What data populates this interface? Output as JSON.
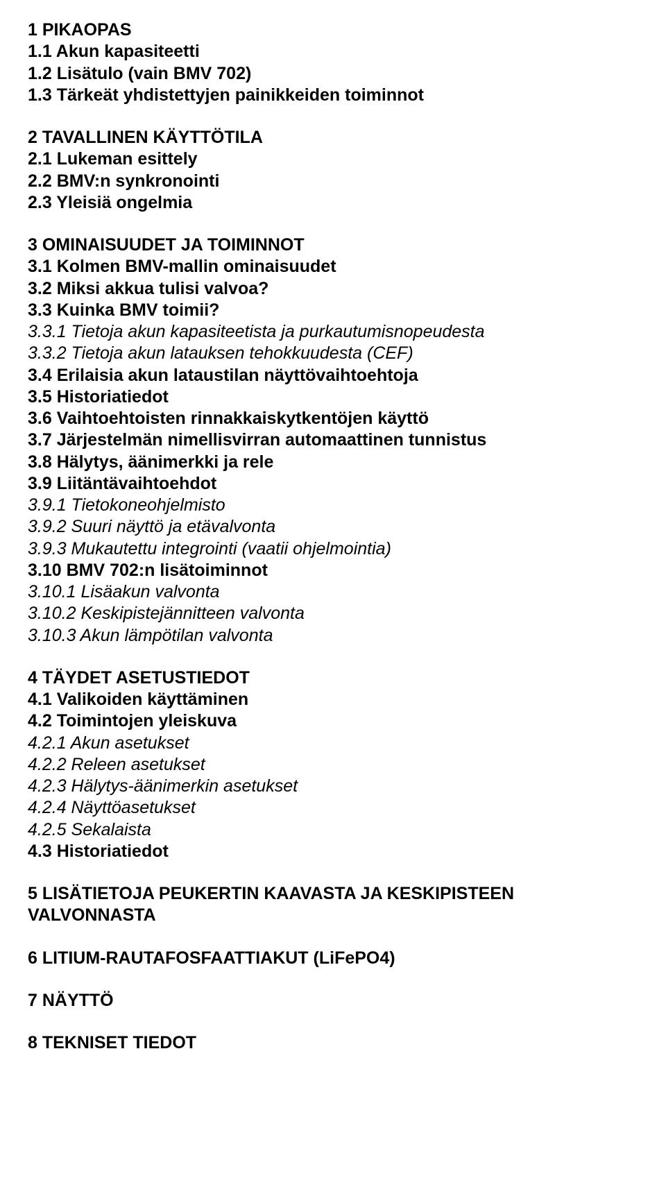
{
  "typography": {
    "font_family": "Arial, Helvetica, sans-serif",
    "font_size_pt": 19,
    "line_height": 1.25,
    "text_color": "#000000",
    "background_color": "#ffffff",
    "bold_weight": 700,
    "normal_weight": 400
  },
  "sections": [
    {
      "lines": [
        {
          "text": "1 PIKAOPAS",
          "bold": true,
          "italic": false
        },
        {
          "text": "1.1 Akun kapasiteetti",
          "bold": true,
          "italic": false
        },
        {
          "text": "1.2 Lisätulo (vain BMV 702)",
          "bold": true,
          "italic": false
        },
        {
          "text": "1.3 Tärkeät yhdistettyjen painikkeiden toiminnot",
          "bold": true,
          "italic": false
        }
      ]
    },
    {
      "lines": [
        {
          "text": "2 TAVALLINEN KÄYTTÖTILA",
          "bold": true,
          "italic": false
        },
        {
          "text": "2.1 Lukeman esittely",
          "bold": true,
          "italic": false
        },
        {
          "text": "2.2 BMV:n synkronointi",
          "bold": true,
          "italic": false
        },
        {
          "text": "2.3 Yleisiä ongelmia",
          "bold": true,
          "italic": false
        }
      ]
    },
    {
      "lines": [
        {
          "text": "3 OMINAISUUDET JA TOIMINNOT",
          "bold": true,
          "italic": false
        },
        {
          "text": "3.1 Kolmen BMV-mallin ominaisuudet",
          "bold": true,
          "italic": false
        },
        {
          "text": "3.2 Miksi akkua tulisi valvoa?",
          "bold": true,
          "italic": false
        },
        {
          "text": "3.3 Kuinka BMV toimii?",
          "bold": true,
          "italic": false
        },
        {
          "text": "3.3.1 Tietoja akun kapasiteetista ja purkautumisnopeudesta",
          "bold": false,
          "italic": true
        },
        {
          "text": "3.3.2 Tietoja akun latauksen tehokkuudesta (CEF)",
          "bold": false,
          "italic": true
        },
        {
          "text": "3.4 Erilaisia akun lataustilan näyttövaihtoehtoja",
          "bold": true,
          "italic": false
        },
        {
          "text": "3.5 Historiatiedot",
          "bold": true,
          "italic": false
        },
        {
          "text": "3.6 Vaihtoehtoisten rinnakkaiskytkentöjen käyttö",
          "bold": true,
          "italic": false
        },
        {
          "text": "3.7 Järjestelmän nimellisvirran automaattinen tunnistus",
          "bold": true,
          "italic": false
        },
        {
          "text": "3.8 Hälytys, äänimerkki ja rele",
          "bold": true,
          "italic": false
        },
        {
          "text": "3.9 Liitäntävaihtoehdot",
          "bold": true,
          "italic": false
        },
        {
          "text": "3.9.1 Tietokoneohjelmisto",
          "bold": false,
          "italic": true
        },
        {
          "text": "3.9.2 Suuri näyttö ja etävalvonta",
          "bold": false,
          "italic": true
        },
        {
          "text": "3.9.3 Mukautettu integrointi (vaatii ohjelmointia)",
          "bold": false,
          "italic": true
        },
        {
          "text": "3.10 BMV 702:n lisätoiminnot",
          "bold": true,
          "italic": false
        },
        {
          "text": "3.10.1 Lisäakun valvonta",
          "bold": false,
          "italic": true
        },
        {
          "text": "3.10.2 Keskipistejännitteen valvonta",
          "bold": false,
          "italic": true
        },
        {
          "text": "3.10.3 Akun lämpötilan valvonta",
          "bold": false,
          "italic": true
        }
      ]
    },
    {
      "lines": [
        {
          "text": "4 TÄYDET ASETUSTIEDOT",
          "bold": true,
          "italic": false
        },
        {
          "text": "4.1 Valikoiden käyttäminen",
          "bold": true,
          "italic": false
        },
        {
          "text": "4.2 Toimintojen yleiskuva",
          "bold": true,
          "italic": false
        },
        {
          "text": "4.2.1 Akun asetukset",
          "bold": false,
          "italic": true
        },
        {
          "text": "4.2.2 Releen asetukset",
          "bold": false,
          "italic": true
        },
        {
          "text": "4.2.3 Hälytys-äänimerkin asetukset",
          "bold": false,
          "italic": true
        },
        {
          "text": "4.2.4 Näyttöasetukset",
          "bold": false,
          "italic": true
        },
        {
          "text": "4.2.5 Sekalaista",
          "bold": false,
          "italic": true
        },
        {
          "text": "4.3 Historiatiedot",
          "bold": true,
          "italic": false
        }
      ]
    },
    {
      "lines": [
        {
          "text": "5 LISÄTIETOJA PEUKERTIN KAAVASTA JA KESKIPISTEEN VALVONNASTA",
          "bold": true,
          "italic": false
        }
      ]
    },
    {
      "lines": [
        {
          "text": "6 LITIUM-RAUTAFOSFAATTIAKUT (LiFePO4)",
          "bold": true,
          "italic": false
        }
      ]
    },
    {
      "lines": [
        {
          "text": "7 NÄYTTÖ",
          "bold": true,
          "italic": false
        }
      ]
    },
    {
      "lines": [
        {
          "text": "8 TEKNISET TIEDOT",
          "bold": true,
          "italic": false
        }
      ]
    }
  ]
}
